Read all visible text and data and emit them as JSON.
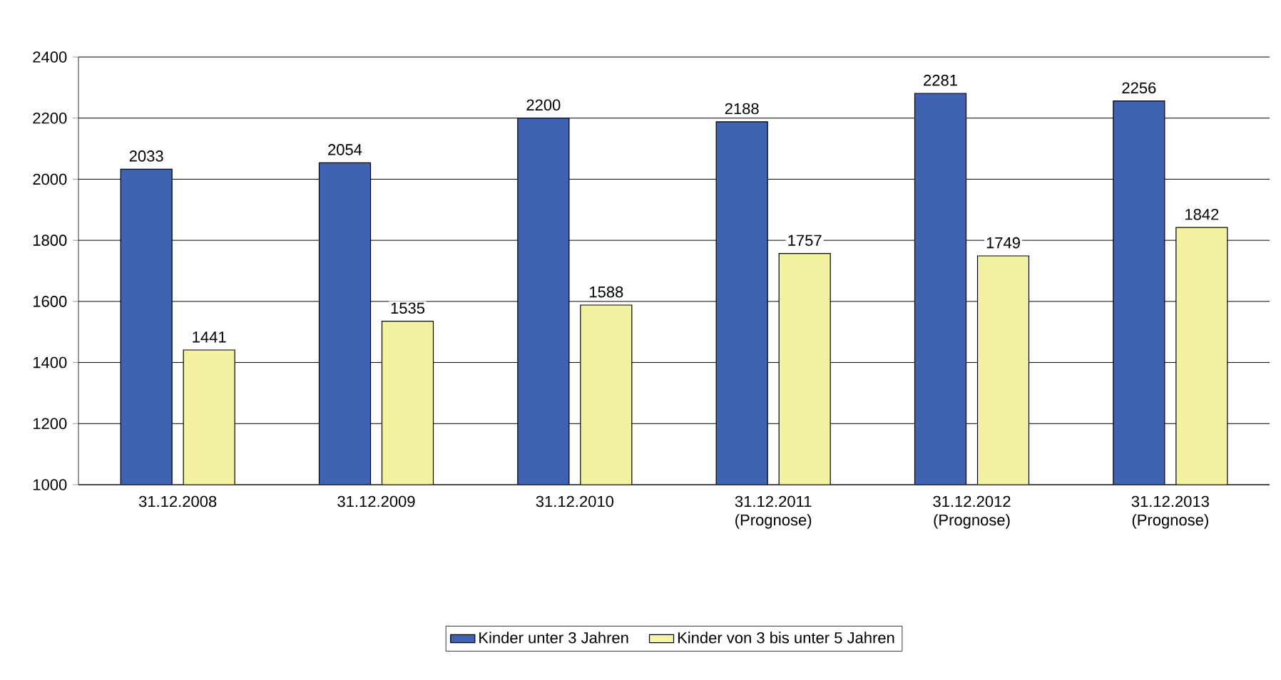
{
  "chart_data": {
    "type": "bar",
    "categories": [
      "31.12.2008",
      "31.12.2009",
      "31.12.2010",
      "31.12.2011 (Prognose)",
      "31.12.2012 (Prognose)",
      "31.12.2013 (Prognose)"
    ],
    "series": [
      {
        "name": "Kinder unter 3 Jahren",
        "color": "#3f62b3",
        "values": [
          2033,
          2054,
          2200,
          2188,
          2281,
          2256
        ]
      },
      {
        "name": "Kinder von 3 bis unter 5 Jahren",
        "color": "#f2f2a2",
        "values": [
          1441,
          1535,
          1588,
          1757,
          1749,
          1842
        ]
      }
    ],
    "ylim": [
      1000,
      2400
    ],
    "yticks": [
      1000,
      1200,
      1400,
      1600,
      1800,
      2000,
      2200,
      2400
    ],
    "grid": "y",
    "legend": "bottom",
    "data_labels": true
  }
}
